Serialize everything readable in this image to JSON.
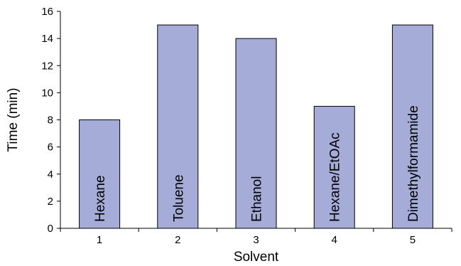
{
  "chart_data": {
    "type": "bar",
    "title": "",
    "xlabel": "Solvent",
    "ylabel": "Time (min)",
    "categories": [
      "1",
      "2",
      "3",
      "4",
      "5"
    ],
    "values": [
      8,
      15,
      14,
      9,
      15
    ],
    "bar_labels": [
      "Hexane",
      "Toluene",
      "Ethanol",
      "Hexane/EtOAc",
      "Dimethylformamide"
    ],
    "ylim": [
      0,
      16
    ],
    "yticks": [
      0,
      2,
      4,
      6,
      8,
      10,
      12,
      14,
      16
    ],
    "grid": false,
    "bar_color": "#a6acd8"
  }
}
